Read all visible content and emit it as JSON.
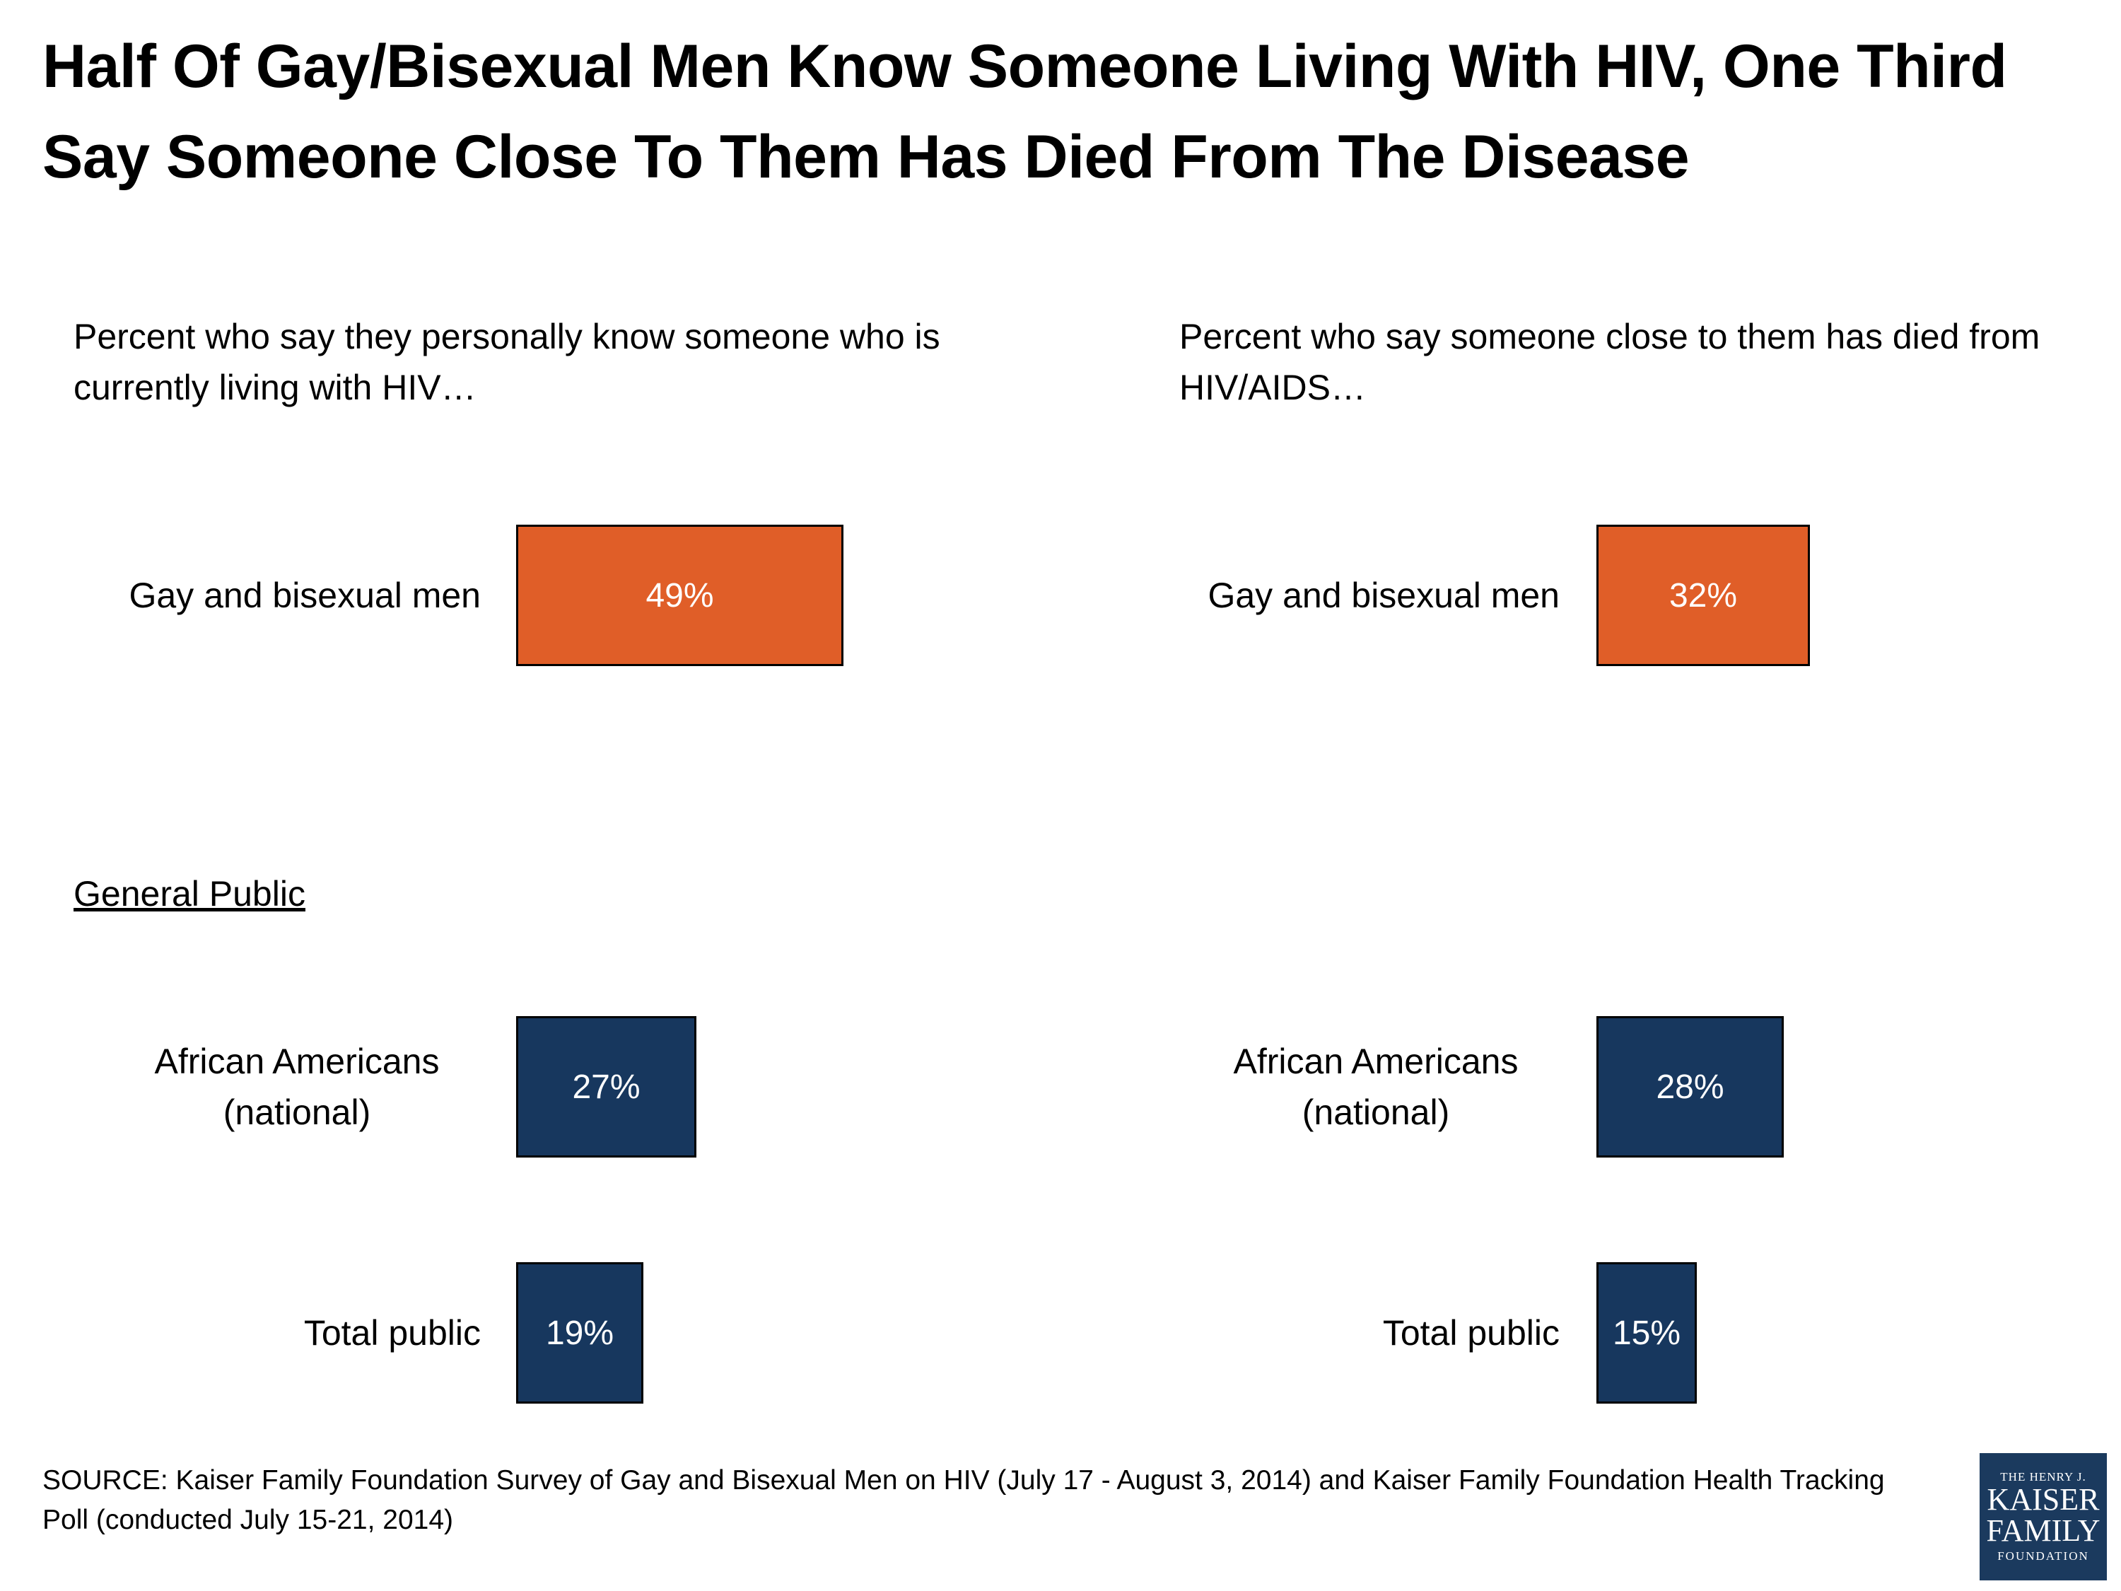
{
  "chart_data": {
    "type": "bar",
    "title": "Half Of Gay/Bisexual Men Know Someone Living With HIV, One Third Say Someone Close To Them Has Died From The Disease",
    "section_label": "General Public",
    "panels": [
      {
        "subtitle": "Percent who say they personally know someone who is currently living with HIV…",
        "categories": [
          "Gay and bisexual men",
          "African Americans (national)",
          "Total public"
        ],
        "values": [
          49,
          27,
          19
        ],
        "labels": [
          "49%",
          "27%",
          "19%"
        ]
      },
      {
        "subtitle": "Percent who say someone close to them has died from HIV/AIDS…",
        "categories": [
          "Gay and bisexual men",
          "African Americans (national)",
          "Total public"
        ],
        "values": [
          32,
          28,
          15
        ],
        "labels": [
          "32%",
          "28%",
          "15%"
        ]
      }
    ],
    "colors": {
      "highlight": "#e05e28",
      "general": "#17375e"
    }
  },
  "source": "SOURCE: Kaiser Family Foundation Survey of Gay and Bisexual Men on HIV (July 17 - August 3, 2014) and Kaiser Family Foundation Health Tracking Poll (conducted July 15-21, 2014)",
  "logo": {
    "line1": "THE HENRY J.",
    "line2": "KAISER",
    "line3": "FAMILY",
    "line4": "FOUNDATION"
  }
}
